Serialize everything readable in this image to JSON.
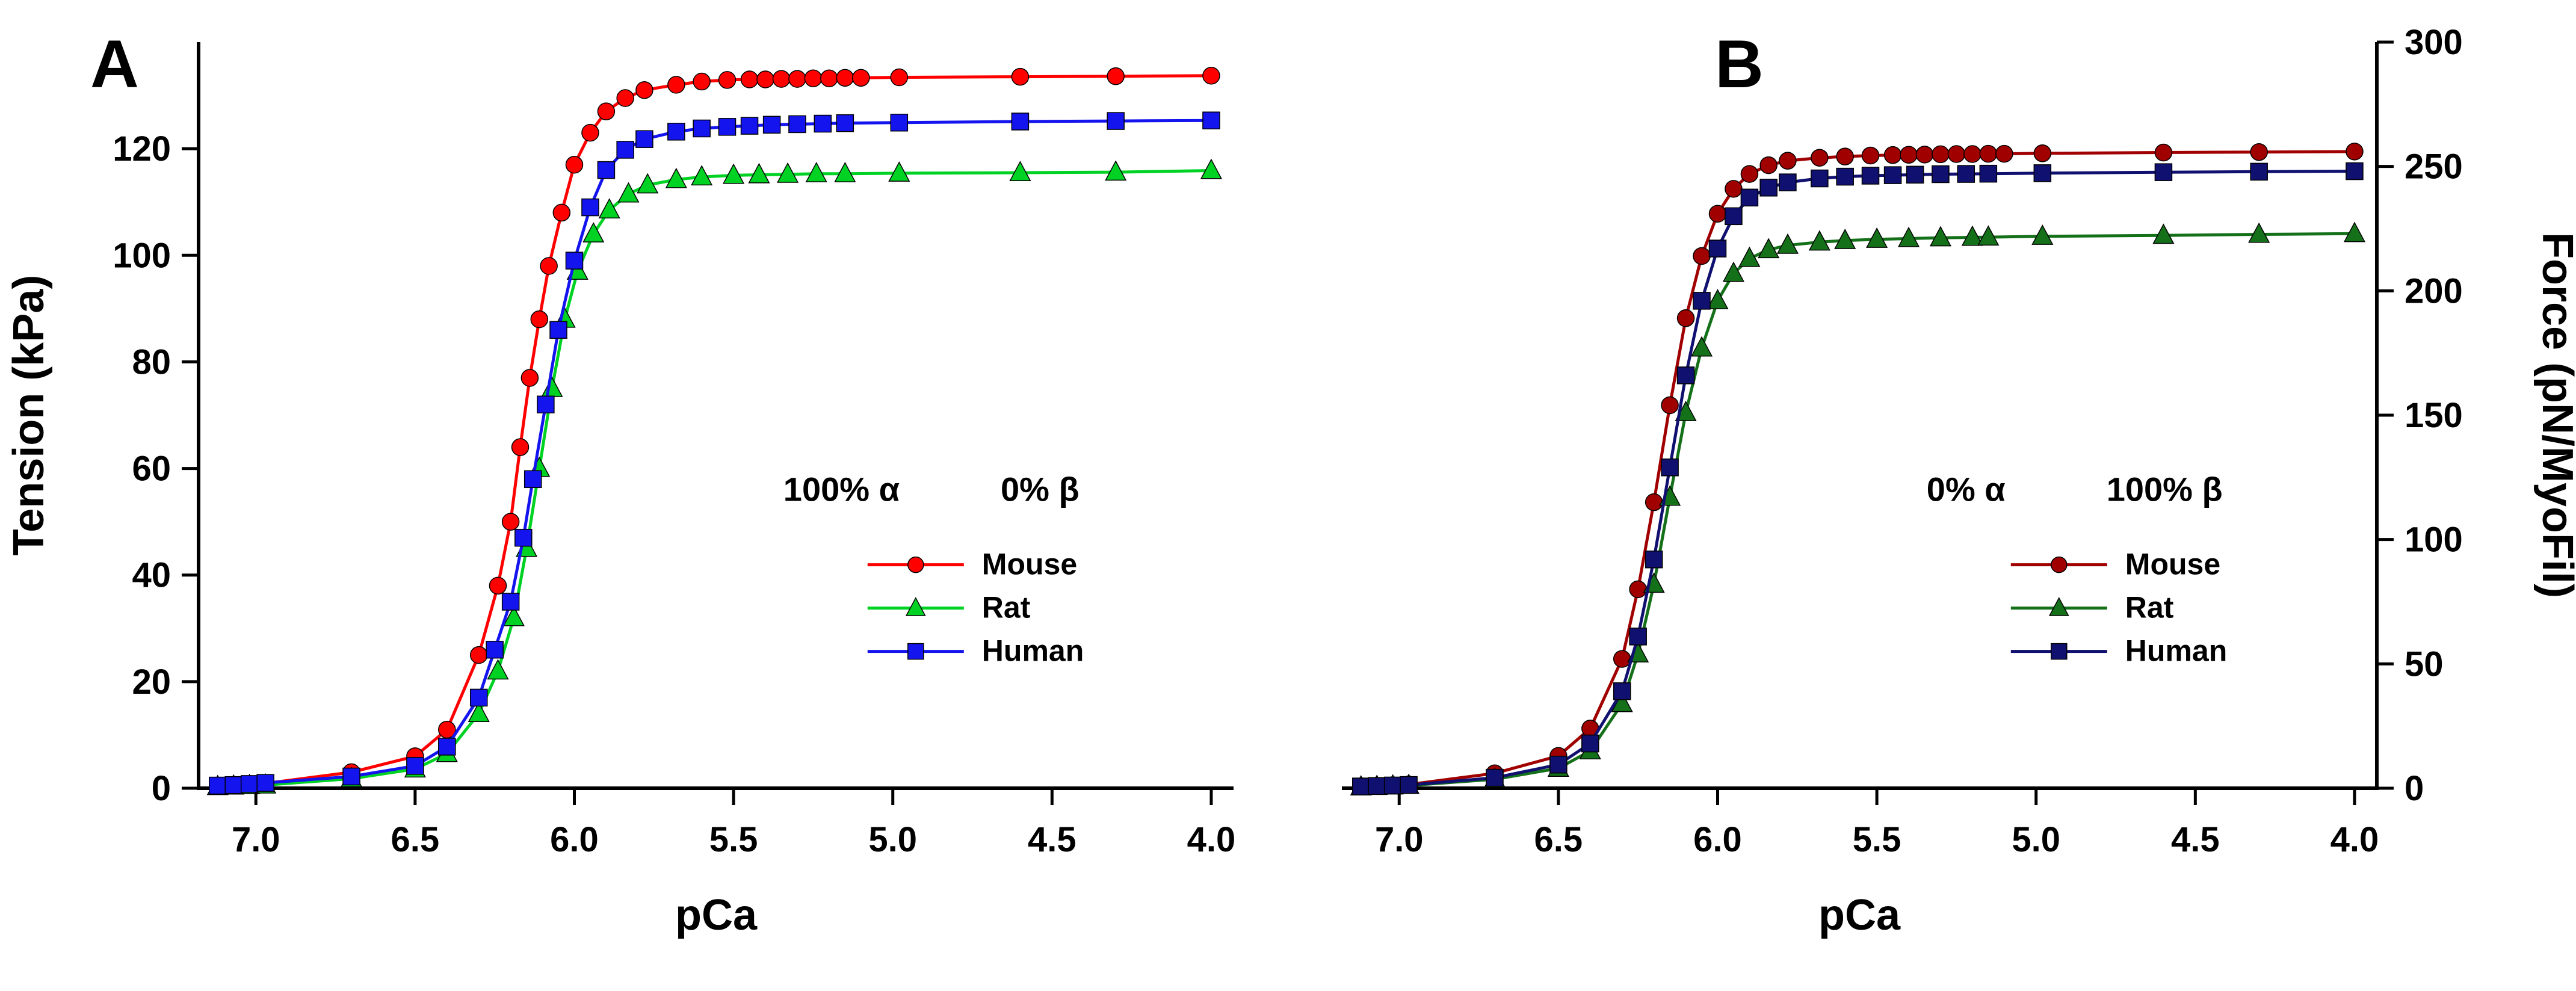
{
  "figure": {
    "background": "#FFFFFF"
  },
  "chart_data": [
    {
      "type": "line",
      "panel_label": "A",
      "panel_label_color": "#FF0A0A",
      "xlabel": "pCa",
      "ylabel": "Tension (kPa)",
      "y_axis_side": "left",
      "x_reversed": true,
      "x_range": [
        7.18,
        3.93
      ],
      "y_range": [
        0,
        140
      ],
      "x_ticks": [
        7.0,
        6.5,
        6.0,
        5.5,
        5.0,
        4.5,
        4.0
      ],
      "x_tick_labels": [
        "7.0",
        "6.5",
        "6.0",
        "5.5",
        "5.0",
        "4.5",
        "4.0"
      ],
      "y_ticks": [
        0,
        20,
        40,
        60,
        80,
        100,
        120
      ],
      "y_tick_labels": [
        "0",
        "20",
        "40",
        "60",
        "80",
        "100",
        "120"
      ],
      "grid": false,
      "legend": {
        "title_left": "100% α",
        "title_right": "0% β",
        "position": "inside-lower-right",
        "entries": [
          "Mouse",
          "Rat",
          "Human"
        ]
      },
      "series": [
        {
          "name": "Mouse",
          "color": "#FF0000",
          "marker": "circle",
          "points": [
            [
              7.12,
              0.5
            ],
            [
              7.07,
              0.6
            ],
            [
              7.02,
              0.7
            ],
            [
              6.97,
              0.9
            ],
            [
              6.7,
              3
            ],
            [
              6.5,
              6
            ],
            [
              6.4,
              11
            ],
            [
              6.3,
              25
            ],
            [
              6.24,
              38
            ],
            [
              6.2,
              50
            ],
            [
              6.17,
              64
            ],
            [
              6.14,
              77
            ],
            [
              6.11,
              88
            ],
            [
              6.08,
              98
            ],
            [
              6.04,
              108
            ],
            [
              6.0,
              117
            ],
            [
              5.95,
              123
            ],
            [
              5.9,
              127
            ],
            [
              5.84,
              129.5
            ],
            [
              5.78,
              131
            ],
            [
              5.68,
              132
            ],
            [
              5.6,
              132.6
            ],
            [
              5.52,
              132.9
            ],
            [
              5.45,
              133
            ],
            [
              5.4,
              133
            ],
            [
              5.35,
              133.1
            ],
            [
              5.3,
              133.1
            ],
            [
              5.25,
              133.2
            ],
            [
              5.2,
              133.2
            ],
            [
              5.15,
              133.3
            ],
            [
              5.1,
              133.3
            ],
            [
              4.98,
              133.4
            ],
            [
              4.6,
              133.5
            ],
            [
              4.3,
              133.6
            ],
            [
              4.0,
              133.7
            ]
          ]
        },
        {
          "name": "Rat",
          "color": "#00D224",
          "marker": "triangle",
          "points": [
            [
              7.12,
              0.3
            ],
            [
              7.07,
              0.4
            ],
            [
              7.02,
              0.5
            ],
            [
              6.97,
              0.6
            ],
            [
              6.7,
              1.8
            ],
            [
              6.5,
              3.6
            ],
            [
              6.4,
              6.5
            ],
            [
              6.3,
              14
            ],
            [
              6.24,
              22
            ],
            [
              6.19,
              32
            ],
            [
              6.15,
              45
            ],
            [
              6.11,
              60
            ],
            [
              6.07,
              75
            ],
            [
              6.03,
              88
            ],
            [
              5.99,
              97
            ],
            [
              5.94,
              104
            ],
            [
              5.89,
              108.5
            ],
            [
              5.83,
              111.5
            ],
            [
              5.77,
              113.2
            ],
            [
              5.68,
              114.2
            ],
            [
              5.6,
              114.7
            ],
            [
              5.5,
              115
            ],
            [
              5.42,
              115.1
            ],
            [
              5.33,
              115.2
            ],
            [
              5.24,
              115.3
            ],
            [
              5.15,
              115.3
            ],
            [
              4.98,
              115.4
            ],
            [
              4.6,
              115.5
            ],
            [
              4.3,
              115.6
            ],
            [
              4.0,
              115.9
            ]
          ]
        },
        {
          "name": "Human",
          "color": "#1414EE",
          "marker": "square",
          "points": [
            [
              7.12,
              0.5
            ],
            [
              7.07,
              0.6
            ],
            [
              7.02,
              0.8
            ],
            [
              6.97,
              1.0
            ],
            [
              6.7,
              2.2
            ],
            [
              6.5,
              4.2
            ],
            [
              6.4,
              7.8
            ],
            [
              6.3,
              17
            ],
            [
              6.25,
              26
            ],
            [
              6.2,
              35
            ],
            [
              6.16,
              47
            ],
            [
              6.13,
              58
            ],
            [
              6.09,
              72
            ],
            [
              6.05,
              86
            ],
            [
              6.0,
              99
            ],
            [
              5.95,
              109
            ],
            [
              5.9,
              116
            ],
            [
              5.84,
              119.8
            ],
            [
              5.78,
              121.8
            ],
            [
              5.68,
              123.2
            ],
            [
              5.6,
              123.8
            ],
            [
              5.52,
              124.1
            ],
            [
              5.45,
              124.3
            ],
            [
              5.38,
              124.5
            ],
            [
              5.3,
              124.6
            ],
            [
              5.22,
              124.7
            ],
            [
              5.15,
              124.8
            ],
            [
              4.98,
              124.9
            ],
            [
              4.6,
              125.1
            ],
            [
              4.3,
              125.2
            ],
            [
              4.0,
              125.3
            ]
          ]
        }
      ]
    },
    {
      "type": "line",
      "panel_label": "B",
      "panel_label_color": "#FF0A0A",
      "xlabel": "pCa",
      "ylabel": "Force (pN/MyoFil)",
      "y_axis_side": "right",
      "x_reversed": true,
      "x_range": [
        7.18,
        3.93
      ],
      "y_range": [
        0,
        300
      ],
      "x_ticks": [
        7.0,
        6.5,
        6.0,
        5.5,
        5.0,
        4.5,
        4.0
      ],
      "x_tick_labels": [
        "7.0",
        "6.5",
        "6.0",
        "5.5",
        "5.0",
        "4.5",
        "4.0"
      ],
      "y_ticks": [
        0,
        50,
        100,
        150,
        200,
        250,
        300
      ],
      "y_tick_labels": [
        "0",
        "50",
        "100",
        "150",
        "200",
        "250",
        "300"
      ],
      "grid": false,
      "legend": {
        "title_left": "0% α",
        "title_right": "100% β",
        "position": "inside-lower-right",
        "entries": [
          "Mouse",
          "Rat",
          "Human"
        ]
      },
      "series": [
        {
          "name": "Mouse",
          "color": "#A00000",
          "marker": "circle",
          "points": [
            [
              7.12,
              0.8
            ],
            [
              7.07,
              1.0
            ],
            [
              7.02,
              1.2
            ],
            [
              6.97,
              1.5
            ],
            [
              6.7,
              6
            ],
            [
              6.5,
              13
            ],
            [
              6.4,
              24
            ],
            [
              6.3,
              52
            ],
            [
              6.25,
              80
            ],
            [
              6.2,
              115
            ],
            [
              6.15,
              154
            ],
            [
              6.1,
              189
            ],
            [
              6.05,
              214
            ],
            [
              6.0,
              231
            ],
            [
              5.95,
              241
            ],
            [
              5.9,
              247
            ],
            [
              5.84,
              250.5
            ],
            [
              5.78,
              252.3
            ],
            [
              5.68,
              253.5
            ],
            [
              5.6,
              254
            ],
            [
              5.52,
              254.4
            ],
            [
              5.45,
              254.6
            ],
            [
              5.4,
              254.7
            ],
            [
              5.35,
              254.8
            ],
            [
              5.3,
              254.9
            ],
            [
              5.25,
              255
            ],
            [
              5.2,
              255
            ],
            [
              5.15,
              255.1
            ],
            [
              5.1,
              255.1
            ],
            [
              4.98,
              255.3
            ],
            [
              4.6,
              255.6
            ],
            [
              4.3,
              255.8
            ],
            [
              4.0,
              256
            ]
          ]
        },
        {
          "name": "Rat",
          "color": "#15701A",
          "marker": "triangle",
          "points": [
            [
              7.12,
              0.5
            ],
            [
              7.07,
              0.7
            ],
            [
              7.02,
              0.9
            ],
            [
              6.97,
              1.1
            ],
            [
              6.7,
              3.6
            ],
            [
              6.5,
              8
            ],
            [
              6.4,
              15
            ],
            [
              6.3,
              34
            ],
            [
              6.25,
              54
            ],
            [
              6.2,
              82
            ],
            [
              6.15,
              117
            ],
            [
              6.1,
              151
            ],
            [
              6.05,
              177
            ],
            [
              6.0,
              196
            ],
            [
              5.95,
              207
            ],
            [
              5.9,
              213
            ],
            [
              5.84,
              216.5
            ],
            [
              5.78,
              218.3
            ],
            [
              5.68,
              219.6
            ],
            [
              5.6,
              220.2
            ],
            [
              5.5,
              220.7
            ],
            [
              5.4,
              221
            ],
            [
              5.3,
              221.3
            ],
            [
              5.2,
              221.5
            ],
            [
              5.15,
              221.6
            ],
            [
              4.98,
              221.9
            ],
            [
              4.6,
              222.3
            ],
            [
              4.3,
              222.7
            ],
            [
              4.0,
              223
            ]
          ]
        },
        {
          "name": "Human",
          "color": "#101070",
          "marker": "square",
          "points": [
            [
              7.12,
              0.7
            ],
            [
              7.07,
              0.9
            ],
            [
              7.02,
              1.1
            ],
            [
              6.97,
              1.3
            ],
            [
              6.7,
              4.2
            ],
            [
              6.5,
              9.5
            ],
            [
              6.4,
              18
            ],
            [
              6.3,
              39
            ],
            [
              6.25,
              61
            ],
            [
              6.2,
              92
            ],
            [
              6.15,
              129
            ],
            [
              6.1,
              166
            ],
            [
              6.05,
              196
            ],
            [
              6.0,
              217
            ],
            [
              5.95,
              230
            ],
            [
              5.9,
              237.5
            ],
            [
              5.84,
              241.5
            ],
            [
              5.78,
              243.6
            ],
            [
              5.68,
              245.2
            ],
            [
              5.6,
              245.9
            ],
            [
              5.52,
              246.3
            ],
            [
              5.45,
              246.5
            ],
            [
              5.38,
              246.7
            ],
            [
              5.3,
              246.9
            ],
            [
              5.22,
              247
            ],
            [
              5.15,
              247.1
            ],
            [
              4.98,
              247.3
            ],
            [
              4.6,
              247.7
            ],
            [
              4.3,
              247.9
            ],
            [
              4.0,
              248.1
            ]
          ]
        }
      ]
    }
  ]
}
